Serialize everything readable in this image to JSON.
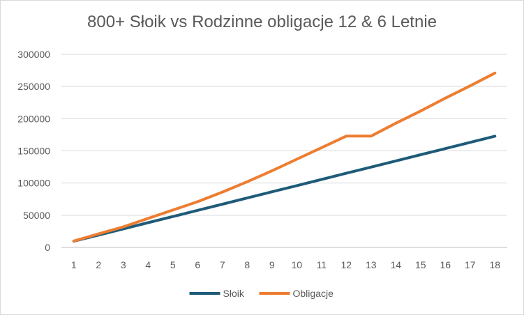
{
  "chart_data": {
    "type": "line",
    "title": "800+ Słoik vs Rodzinne obligacje 12 & 6 Letnie",
    "xlabel": "",
    "ylabel": "",
    "categories": [
      "1",
      "2",
      "3",
      "4",
      "5",
      "6",
      "7",
      "8",
      "9",
      "10",
      "11",
      "12",
      "13",
      "14",
      "15",
      "16",
      "17",
      "18"
    ],
    "y_ticks": [
      "0",
      "50000",
      "100000",
      "150000",
      "200000",
      "250000",
      "300000"
    ],
    "ylim": [
      0,
      300000
    ],
    "grid": true,
    "legend": "bottom",
    "series": [
      {
        "name": "Słoik",
        "color": "#1f5b79",
        "values": [
          9600,
          19200,
          28800,
          38400,
          48000,
          57600,
          67200,
          76800,
          86400,
          96000,
          105600,
          115200,
          124800,
          134400,
          144000,
          153600,
          163200,
          172800
        ]
      },
      {
        "name": "Obligacje",
        "color": "#ed7d31",
        "values": [
          10000,
          21000,
          32000,
          45000,
          58000,
          71000,
          86000,
          102000,
          119000,
          137000,
          155000,
          173000,
          173000,
          193000,
          212000,
          232000,
          251000,
          271000
        ]
      }
    ]
  }
}
